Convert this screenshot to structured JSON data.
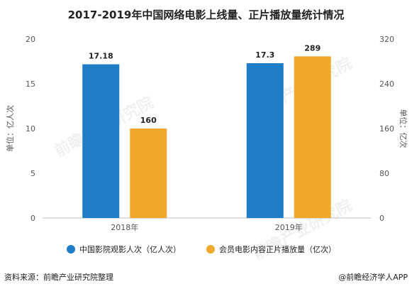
{
  "chart_data": {
    "type": "bar",
    "title": "2017-2019年中国网络电影上线量、正片播放量统计情况",
    "categories": [
      "2018年",
      "2019年"
    ],
    "series": [
      {
        "name": "中国影院观影人次（亿人次）",
        "axis": "left",
        "color": "#1f7cc6",
        "values": [
          17.18,
          17.3
        ],
        "labels": [
          "17.18",
          "17.3"
        ]
      },
      {
        "name": "会员电影内容正片播放量（亿次）",
        "axis": "right",
        "color": "#f0a92b",
        "values": [
          160,
          289
        ],
        "labels": [
          "160",
          "289"
        ]
      }
    ],
    "y_left": {
      "label": "单位：亿人次",
      "min": 0,
      "max": 20,
      "ticks": [
        "0",
        "5",
        "10",
        "15",
        "20"
      ]
    },
    "y_right": {
      "label": "单位：亿次",
      "min": 0,
      "max": 320,
      "ticks": [
        "0",
        "80",
        "160",
        "240",
        "320"
      ]
    },
    "grid": false,
    "legend_position": "bottom"
  },
  "footer": {
    "source": "资料来源：前瞻产业研究院整理",
    "brand": "@前瞻经济学人APP"
  },
  "watermark": "前瞻产业研究院"
}
